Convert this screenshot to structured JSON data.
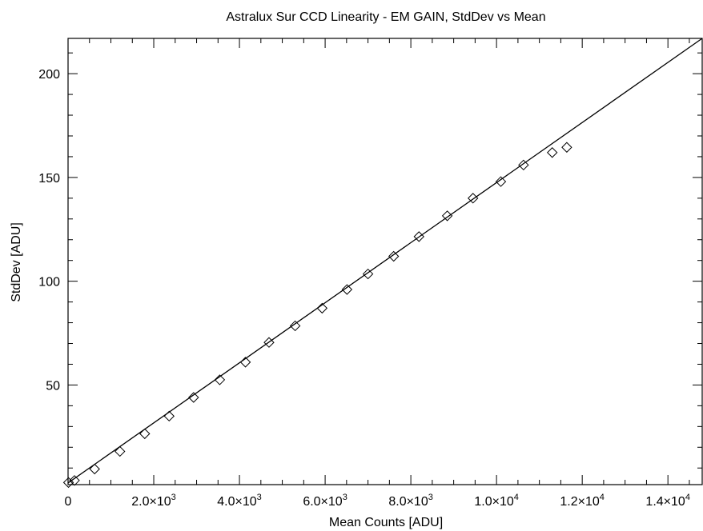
{
  "chart_data": {
    "type": "scatter",
    "title": "Astralux Sur CCD Linearity - EM GAIN, StdDev vs Mean",
    "xlabel": "Mean Counts [ADU]",
    "ylabel": "StdDev [ADU]",
    "xlim": [
      0,
      14800
    ],
    "ylim": [
      2,
      217
    ],
    "x_ticks": [
      {
        "value": 0,
        "mant": "0",
        "exp": ""
      },
      {
        "value": 2000,
        "mant": "2.0×10",
        "exp": "3"
      },
      {
        "value": 4000,
        "mant": "4.0×10",
        "exp": "3"
      },
      {
        "value": 6000,
        "mant": "6.0×10",
        "exp": "3"
      },
      {
        "value": 8000,
        "mant": "8.0×10",
        "exp": "3"
      },
      {
        "value": 10000,
        "mant": "1.0×10",
        "exp": "4"
      },
      {
        "value": 12000,
        "mant": "1.2×10",
        "exp": "4"
      },
      {
        "value": 14000,
        "mant": "1.4×10",
        "exp": "4"
      }
    ],
    "y_ticks": [
      50,
      100,
      150,
      200
    ],
    "grid": false,
    "series": [
      {
        "marker": "diamond",
        "points": [
          [
            10,
            3
          ],
          [
            150,
            4
          ],
          [
            620,
            9.5
          ],
          [
            1210,
            18
          ],
          [
            1790,
            26.5
          ],
          [
            2360,
            35
          ],
          [
            2930,
            44
          ],
          [
            3540,
            52.5
          ],
          [
            4140,
            61
          ],
          [
            4690,
            70.5
          ],
          [
            5300,
            78.5
          ],
          [
            5930,
            87
          ],
          [
            6510,
            96
          ],
          [
            7000,
            103.5
          ],
          [
            7600,
            112
          ],
          [
            8190,
            121.5
          ],
          [
            8850,
            131.5
          ],
          [
            9450,
            140
          ],
          [
            10100,
            148
          ],
          [
            10630,
            156
          ],
          [
            11300,
            162
          ],
          [
            11640,
            164.5
          ]
        ]
      }
    ],
    "fit_line": {
      "x": [
        0,
        14800
      ],
      "y": [
        2.8,
        217
      ]
    }
  }
}
